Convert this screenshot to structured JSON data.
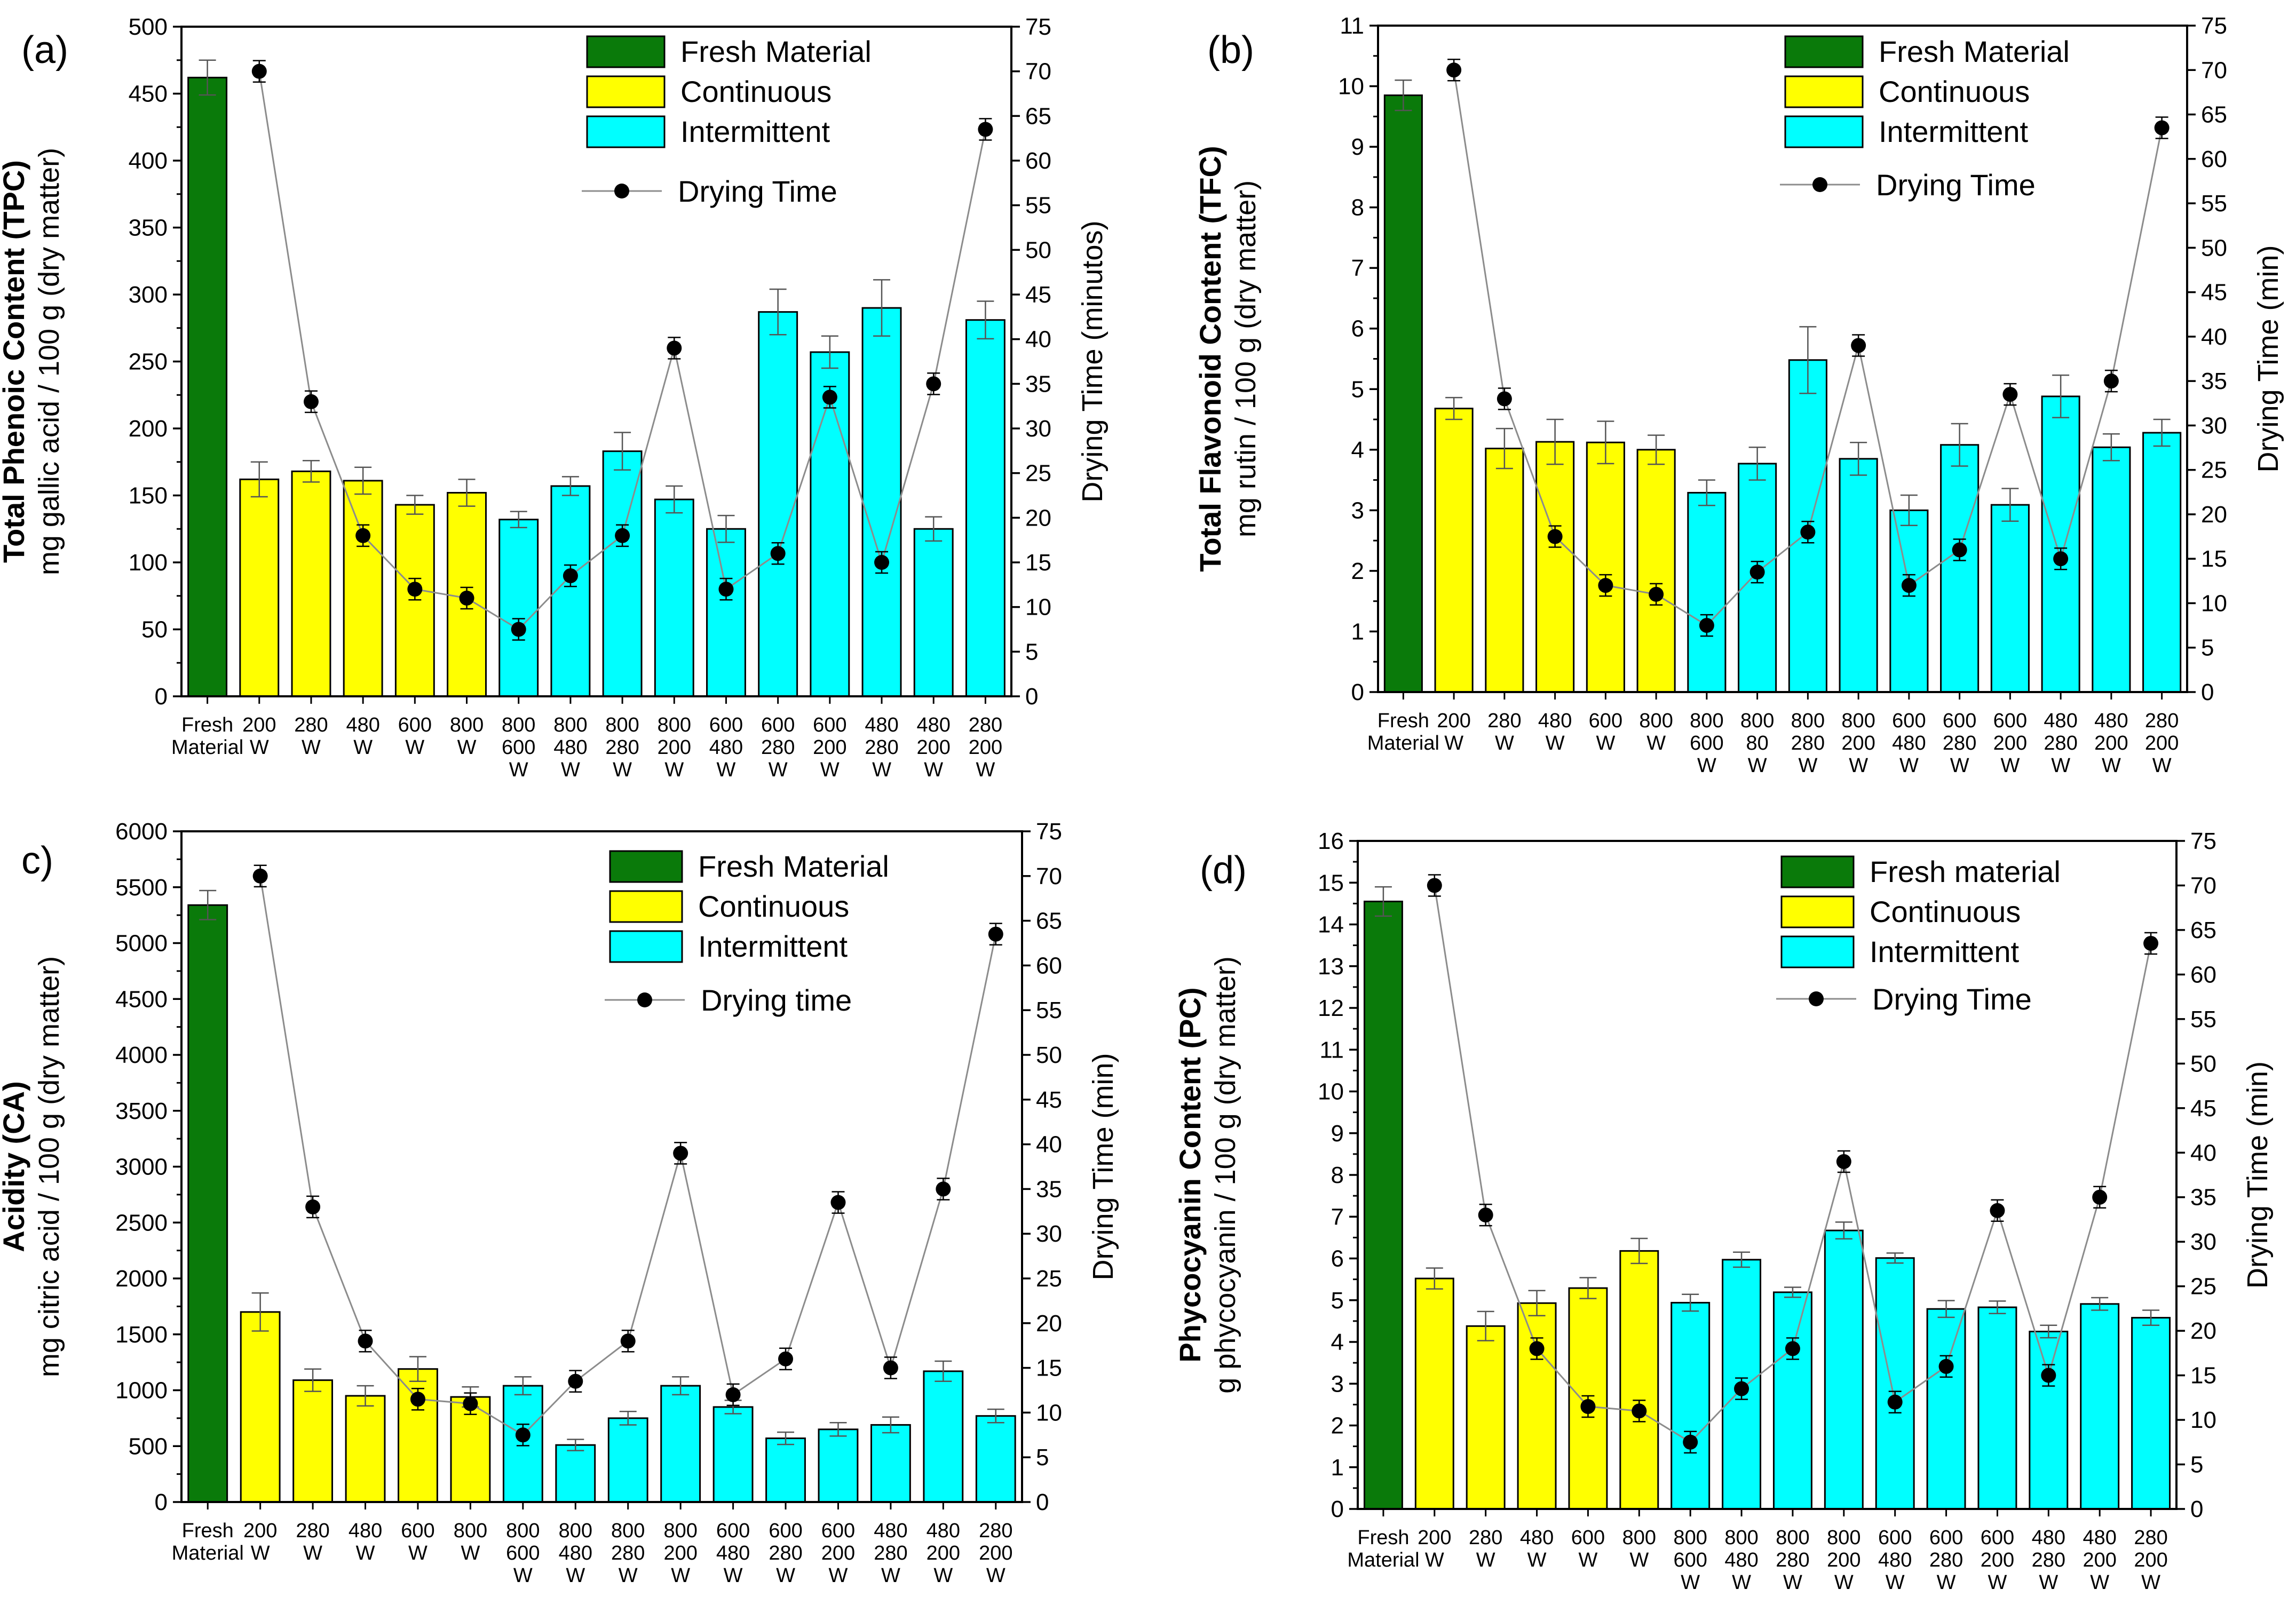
{
  "colors": {
    "fresh": "#0A7A0A",
    "continuous": "#FFFF00",
    "intermittent": "#00FFFF",
    "line": "#8C8C8C",
    "marker": "#000000",
    "axis": "#000000"
  },
  "chart_data": [
    {
      "panel": "(a)",
      "type": "bar",
      "ylabel_bold": "Total Phenoic Content (TPC)",
      "ylabel": "mg gallic acid / 100 g (dry matter)",
      "y2label": "Drying Time (minutos)",
      "ylim": [
        0,
        500
      ],
      "yticks": [
        0,
        50,
        100,
        150,
        200,
        250,
        300,
        350,
        400,
        450,
        500
      ],
      "y2lim": [
        0,
        75
      ],
      "y2ticks": [
        0,
        5,
        10,
        15,
        20,
        25,
        30,
        35,
        40,
        45,
        50,
        55,
        60,
        65,
        70,
        75
      ],
      "legend": [
        "Fresh Material",
        "Continuous",
        "Intermittent",
        "Drying Time"
      ],
      "categories": [
        [
          "Fresh",
          "Material"
        ],
        [
          "200",
          "W"
        ],
        [
          "280",
          "W"
        ],
        [
          "480",
          "W"
        ],
        [
          "600",
          "W"
        ],
        [
          "800",
          "W"
        ],
        [
          "800",
          "600",
          "W"
        ],
        [
          "800",
          "480",
          "W"
        ],
        [
          "800",
          "280",
          "W"
        ],
        [
          "800",
          "200",
          "W"
        ],
        [
          "600",
          "480",
          "W"
        ],
        [
          "600",
          "280",
          "W"
        ],
        [
          "600",
          "200",
          "W"
        ],
        [
          "480",
          "280",
          "W"
        ],
        [
          "480",
          "200",
          "W"
        ],
        [
          "280",
          "200",
          "W"
        ]
      ],
      "group": [
        "fresh",
        "continuous",
        "continuous",
        "continuous",
        "continuous",
        "continuous",
        "intermittent",
        "intermittent",
        "intermittent",
        "intermittent",
        "intermittent",
        "intermittent",
        "intermittent",
        "intermittent",
        "intermittent",
        "intermittent"
      ],
      "values": [
        462,
        162,
        168,
        161,
        143,
        152,
        132,
        157,
        183,
        147,
        125,
        287,
        257,
        290,
        125,
        281
      ],
      "errors": [
        13,
        13,
        8,
        10,
        7,
        10,
        6,
        7,
        14,
        10,
        10,
        17,
        12,
        21,
        9,
        14
      ],
      "drying_time": [
        null,
        70,
        33,
        18,
        12,
        11,
        7.5,
        13.5,
        18,
        39,
        12,
        16,
        33.5,
        15,
        35,
        63.5
      ],
      "drying_time_err": [
        null,
        0.6,
        0.6,
        0.6,
        0.6,
        0.6,
        0.6,
        0.6,
        0.6,
        0.6,
        0.6,
        0.6,
        0.6,
        0.6,
        0.6,
        0.6
      ]
    },
    {
      "panel": "(b)",
      "type": "bar",
      "ylabel_bold": "Total Flavonoid Content (TFC)",
      "ylabel": "mg rutin / 100 g (dry matter)",
      "y2label": "Drying Time (min)",
      "ylim": [
        0,
        11
      ],
      "yticks": [
        0,
        1,
        2,
        3,
        4,
        5,
        6,
        7,
        8,
        9,
        10,
        11
      ],
      "y2lim": [
        0,
        75
      ],
      "y2ticks": [
        0,
        5,
        10,
        15,
        20,
        25,
        30,
        35,
        40,
        45,
        50,
        55,
        60,
        65,
        70,
        75
      ],
      "legend": [
        "Fresh Material",
        "Continuous",
        "Intermittent",
        "Drying Time"
      ],
      "categories": [
        [
          "Fresh",
          "Material"
        ],
        [
          "200",
          "W"
        ],
        [
          "280",
          "W"
        ],
        [
          "480",
          "W"
        ],
        [
          "600",
          "W"
        ],
        [
          "800",
          "W"
        ],
        [
          "800",
          "600",
          "W"
        ],
        [
          "800",
          "80",
          "W"
        ],
        [
          "800",
          "280",
          "W"
        ],
        [
          "800",
          "200",
          "W"
        ],
        [
          "600",
          "480",
          "W"
        ],
        [
          "600",
          "280",
          "W"
        ],
        [
          "600",
          "200",
          "W"
        ],
        [
          "480",
          "280",
          "W"
        ],
        [
          "480",
          "200",
          "W"
        ],
        [
          "280",
          "200",
          "W"
        ]
      ],
      "group": [
        "fresh",
        "continuous",
        "continuous",
        "continuous",
        "continuous",
        "continuous",
        "intermittent",
        "intermittent",
        "intermittent",
        "intermittent",
        "intermittent",
        "intermittent",
        "intermittent",
        "intermittent",
        "intermittent",
        "intermittent"
      ],
      "values": [
        9.85,
        4.68,
        4.02,
        4.13,
        4.12,
        4.0,
        3.29,
        3.77,
        5.48,
        3.85,
        3.0,
        4.08,
        3.09,
        4.88,
        4.04,
        4.28
      ],
      "errors": [
        0.25,
        0.18,
        0.33,
        0.37,
        0.35,
        0.24,
        0.21,
        0.27,
        0.55,
        0.27,
        0.25,
        0.35,
        0.27,
        0.35,
        0.22,
        0.22
      ],
      "drying_time": [
        null,
        70,
        33,
        17.5,
        12,
        11,
        7.5,
        13.5,
        18,
        39,
        12,
        16,
        33.5,
        15,
        35,
        63.5
      ],
      "drying_time_err": [
        null,
        0.6,
        0.6,
        0.6,
        0.6,
        0.6,
        0.6,
        0.6,
        0.6,
        0.6,
        0.6,
        0.6,
        0.6,
        0.6,
        0.6,
        0.6
      ]
    },
    {
      "panel": "c)",
      "type": "bar",
      "ylabel_bold": "Acidity (CA)",
      "ylabel": "mg citric acid / 100 g (dry matter)",
      "y2label": "Drying Time (min)",
      "ylim": [
        0,
        6000
      ],
      "yticks": [
        0,
        500,
        1000,
        1500,
        2000,
        2500,
        3000,
        3500,
        4000,
        4500,
        5000,
        5500,
        6000
      ],
      "y2lim": [
        0,
        75
      ],
      "y2ticks": [
        0,
        5,
        10,
        15,
        20,
        25,
        30,
        35,
        40,
        45,
        50,
        55,
        60,
        65,
        70,
        75
      ],
      "legend": [
        "Fresh Material",
        "Continuous",
        "Intermittent",
        "Drying time"
      ],
      "categories": [
        [
          "Fresh",
          "Material"
        ],
        [
          "200",
          "W"
        ],
        [
          "280",
          "W"
        ],
        [
          "480",
          "W"
        ],
        [
          "600",
          "W"
        ],
        [
          "800",
          "W"
        ],
        [
          "800",
          "600",
          "W"
        ],
        [
          "800",
          "480",
          "W"
        ],
        [
          "800",
          "280",
          "W"
        ],
        [
          "800",
          "200",
          "W"
        ],
        [
          "600",
          "480",
          "W"
        ],
        [
          "600",
          "280",
          "W"
        ],
        [
          "600",
          "200",
          "W"
        ],
        [
          "480",
          "280",
          "W"
        ],
        [
          "480",
          "200",
          "W"
        ],
        [
          "280",
          "200",
          "W"
        ]
      ],
      "group": [
        "fresh",
        "continuous",
        "continuous",
        "continuous",
        "continuous",
        "continuous",
        "intermittent",
        "intermittent",
        "intermittent",
        "intermittent",
        "intermittent",
        "intermittent",
        "intermittent",
        "intermittent",
        "intermittent",
        "intermittent"
      ],
      "values": [
        5340,
        1700,
        1090,
        950,
        1190,
        940,
        1040,
        510,
        750,
        1040,
        850,
        570,
        650,
        690,
        1170,
        770
      ],
      "errors": [
        130,
        170,
        100,
        90,
        110,
        90,
        80,
        50,
        60,
        80,
        60,
        55,
        60,
        70,
        90,
        60
      ],
      "drying_time": [
        null,
        70,
        33,
        18,
        11.5,
        11,
        7.5,
        13.5,
        18,
        39,
        12,
        16,
        33.5,
        15,
        35,
        63.5
      ],
      "drying_time_err": [
        null,
        0.6,
        0.6,
        0.6,
        0.6,
        0.6,
        0.6,
        0.6,
        0.6,
        0.6,
        0.6,
        0.6,
        0.6,
        0.6,
        0.6,
        0.6
      ]
    },
    {
      "panel": "(d)",
      "type": "bar",
      "ylabel_bold": "Phycocyanin Content (PC)",
      "ylabel": "g phycocyanin / 100 g (dry matter)",
      "y2label": "Drying Time (min)",
      "ylim": [
        0,
        16
      ],
      "yticks": [
        0,
        1,
        2,
        3,
        4,
        5,
        6,
        7,
        8,
        9,
        10,
        11,
        12,
        13,
        14,
        15,
        16
      ],
      "y2lim": [
        0,
        75
      ],
      "y2ticks": [
        0,
        5,
        10,
        15,
        20,
        25,
        30,
        35,
        40,
        45,
        50,
        55,
        60,
        65,
        70,
        75
      ],
      "legend": [
        "Fresh material",
        "Continuous",
        "Intermittent",
        "Drying Time"
      ],
      "categories": [
        [
          "Fresh",
          "Material"
        ],
        [
          "200",
          "W"
        ],
        [
          "280",
          "W"
        ],
        [
          "480",
          "W"
        ],
        [
          "600",
          "W"
        ],
        [
          "800",
          "W"
        ],
        [
          "800",
          "600",
          "W"
        ],
        [
          "800",
          "480",
          "W"
        ],
        [
          "800",
          "280",
          "W"
        ],
        [
          "800",
          "200",
          "W"
        ],
        [
          "600",
          "480",
          "W"
        ],
        [
          "600",
          "280",
          "W"
        ],
        [
          "600",
          "200",
          "W"
        ],
        [
          "480",
          "280",
          "W"
        ],
        [
          "480",
          "200",
          "W"
        ],
        [
          "280",
          "200",
          "W"
        ]
      ],
      "group": [
        "fresh",
        "continuous",
        "continuous",
        "continuous",
        "continuous",
        "continuous",
        "intermittent",
        "intermittent",
        "intermittent",
        "intermittent",
        "intermittent",
        "intermittent",
        "intermittent",
        "intermittent",
        "intermittent",
        "intermittent"
      ],
      "values": [
        14.55,
        5.52,
        4.38,
        4.93,
        5.29,
        6.18,
        4.94,
        5.97,
        5.19,
        6.67,
        6.01,
        4.79,
        4.83,
        4.25,
        4.91,
        4.58
      ],
      "errors": [
        0.35,
        0.25,
        0.35,
        0.3,
        0.25,
        0.3,
        0.2,
        0.18,
        0.12,
        0.2,
        0.12,
        0.2,
        0.15,
        0.15,
        0.15,
        0.18
      ],
      "drying_time": [
        null,
        70,
        33,
        18,
        11.5,
        11,
        7.5,
        13.5,
        18,
        39,
        12,
        16,
        33.5,
        15,
        35,
        63.5
      ],
      "drying_time_err": [
        null,
        0.6,
        0.6,
        0.6,
        0.6,
        0.6,
        0.6,
        0.6,
        0.6,
        0.6,
        0.6,
        0.6,
        0.6,
        0.6,
        0.6,
        0.6
      ]
    }
  ]
}
